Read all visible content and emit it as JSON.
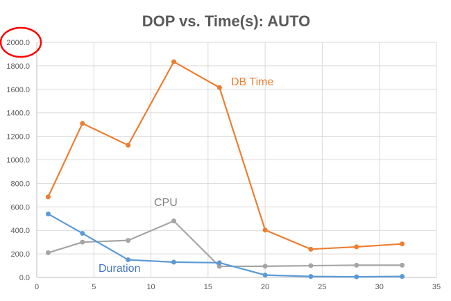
{
  "chart_data": {
    "type": "line",
    "title": "DOP vs. Time(s): AUTO",
    "xlabel": "",
    "ylabel": "",
    "xlim": [
      0,
      35
    ],
    "ylim": [
      0,
      2000
    ],
    "x_ticks": [
      "0",
      "5",
      "10",
      "15",
      "20",
      "25",
      "30",
      "35"
    ],
    "y_ticks": [
      "0.0",
      "200.0",
      "400.0",
      "600.0",
      "800.0",
      "1000.0",
      "1200.0",
      "1400.0",
      "1600.0",
      "1800.0",
      "2000.0"
    ],
    "grid": true,
    "x": [
      1,
      4,
      8,
      12,
      16,
      20,
      24,
      28,
      32
    ],
    "series": [
      {
        "name": "DB Time",
        "color": "#ED7D31",
        "values": [
          685,
          1310,
          1125,
          1835,
          1615,
          403,
          240,
          260,
          285
        ]
      },
      {
        "name": "CPU",
        "color": "#A5A5A5",
        "values": [
          210,
          300,
          315,
          480,
          94,
          95,
          100,
          104,
          104
        ]
      },
      {
        "name": "Duration",
        "color": "#5B9BD5",
        "values": [
          540,
          375,
          150,
          130,
          125,
          20,
          8,
          5,
          8
        ]
      }
    ],
    "annotations": [
      {
        "text": "DB Time",
        "color": "#ED7D31",
        "near": "x=17, y=1700"
      },
      {
        "text": "CPU",
        "color": "#7F7F7F",
        "near": "x=11, y=620"
      },
      {
        "text": "Duration",
        "color": "#4472C4",
        "near": "x=9, y=70"
      }
    ],
    "highlight": {
      "target": "2000.0 y tick label",
      "shape": "red ellipse",
      "color": "#FF0000"
    }
  }
}
